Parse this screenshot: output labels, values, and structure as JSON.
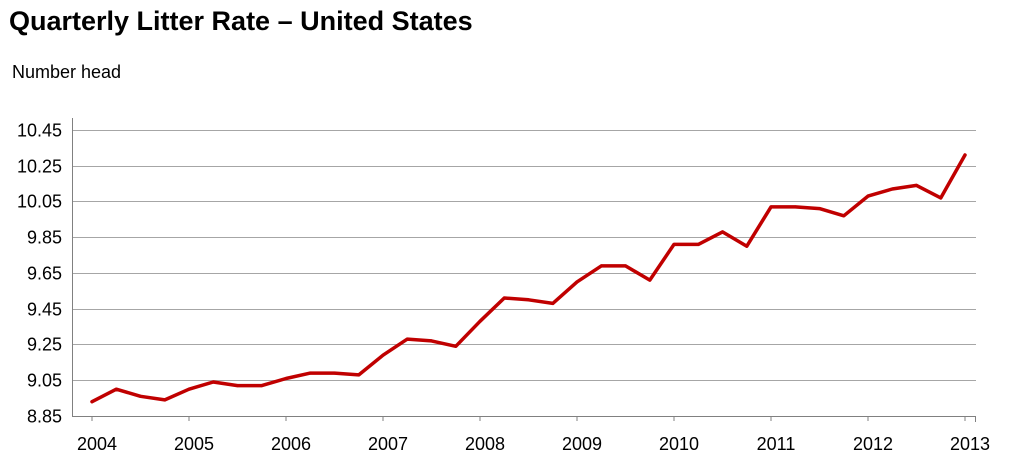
{
  "header": {
    "title": "Quarterly Litter Rate – United States",
    "subtitle": "Number head"
  },
  "colors": {
    "line": "#c00000",
    "grid": "#a6a6a6",
    "axis": "#808080"
  },
  "chart_data": {
    "type": "line",
    "title": "Quarterly Litter Rate – United States",
    "ylabel": "Number head",
    "xlabel": "",
    "ylim": [
      8.85,
      10.45
    ],
    "yticks": [
      8.85,
      9.05,
      9.25,
      9.45,
      9.65,
      9.85,
      10.05,
      10.25,
      10.45
    ],
    "ytick_labels": [
      "8.85",
      "9.05",
      "9.25",
      "9.45",
      "9.65",
      "9.85",
      "10.05",
      "10.25",
      "10.45"
    ],
    "xlim": [
      2004,
      2013
    ],
    "xticks": [
      "2004",
      "2005",
      "2006",
      "2007",
      "2008",
      "2009",
      "2010",
      "2011",
      "2012",
      "2013"
    ],
    "grid": true,
    "series": [
      {
        "x": [
          "2004 Q1",
          "2004 Q2",
          "2004 Q3",
          "2004 Q4",
          "2005 Q1",
          "2005 Q2",
          "2005 Q3",
          "2005 Q4",
          "2006 Q1",
          "2006 Q2",
          "2006 Q3",
          "2006 Q4",
          "2007 Q1",
          "2007 Q2",
          "2007 Q3",
          "2007 Q4",
          "2008 Q1",
          "2008 Q2",
          "2008 Q3",
          "2008 Q4",
          "2009 Q1",
          "2009 Q2",
          "2009 Q3",
          "2009 Q4",
          "2010 Q1",
          "2010 Q2",
          "2010 Q3",
          "2010 Q4",
          "2011 Q1",
          "2011 Q2",
          "2011 Q3",
          "2011 Q4",
          "2012 Q1",
          "2012 Q2",
          "2012 Q3",
          "2012 Q4",
          "2013 Q1"
        ],
        "values": [
          8.93,
          9.0,
          8.96,
          8.94,
          9.0,
          9.04,
          9.02,
          9.02,
          9.06,
          9.09,
          9.09,
          9.08,
          9.19,
          9.28,
          9.27,
          9.24,
          9.38,
          9.51,
          9.5,
          9.48,
          9.6,
          9.69,
          9.69,
          9.61,
          9.81,
          9.81,
          9.88,
          9.8,
          10.02,
          10.02,
          10.01,
          9.97,
          10.08,
          10.12,
          10.14,
          10.07,
          10.31
        ]
      }
    ]
  }
}
